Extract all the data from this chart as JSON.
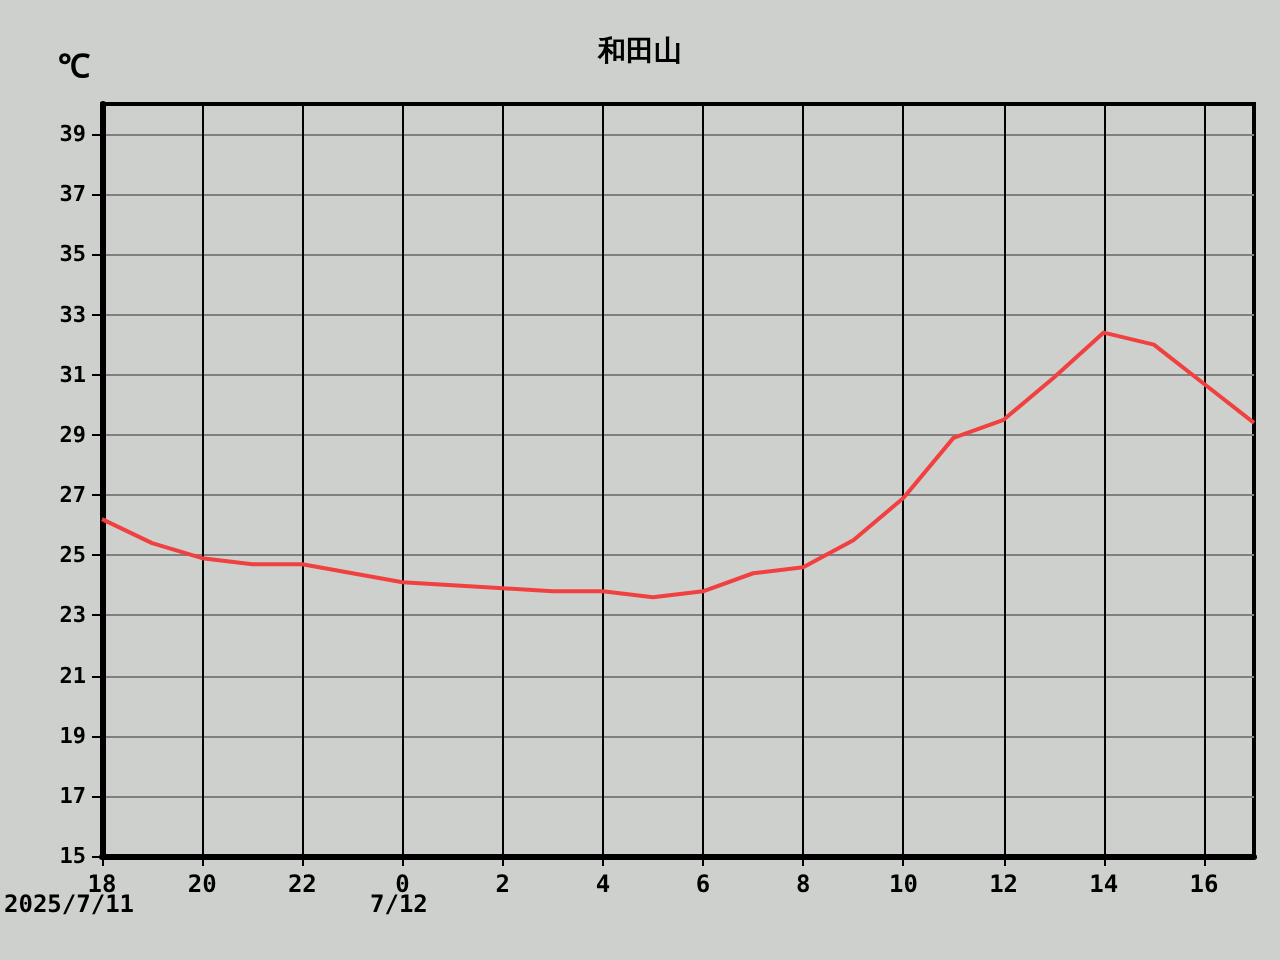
{
  "chart_data": {
    "type": "line",
    "title": "和田山",
    "ylabel": "℃",
    "x": [
      "2025-07-11T18:00",
      "2025-07-11T19:00",
      "2025-07-11T20:00",
      "2025-07-11T21:00",
      "2025-07-11T22:00",
      "2025-07-11T23:00",
      "2025-07-12T00:00",
      "2025-07-12T01:00",
      "2025-07-12T02:00",
      "2025-07-12T03:00",
      "2025-07-12T04:00",
      "2025-07-12T05:00",
      "2025-07-12T06:00",
      "2025-07-12T07:00",
      "2025-07-12T08:00",
      "2025-07-12T09:00",
      "2025-07-12T10:00",
      "2025-07-12T11:00",
      "2025-07-12T12:00",
      "2025-07-12T13:00",
      "2025-07-12T14:00",
      "2025-07-12T15:00",
      "2025-07-12T16:00",
      "2025-07-12T17:00"
    ],
    "series": [
      {
        "color": "#f04040",
        "values": [
          26.2,
          25.4,
          24.9,
          24.7,
          24.7,
          24.4,
          24.1,
          24.0,
          23.9,
          23.8,
          23.8,
          23.6,
          23.8,
          24.4,
          24.6,
          25.5,
          26.9,
          28.9,
          29.5,
          30.9,
          32.4,
          32.0,
          30.7,
          29.4
        ]
      }
    ],
    "xlim": [
      "2025-07-11T18:00",
      "2025-07-12T17:00"
    ],
    "xticks": [
      {
        "value": "2025-07-11T18:00",
        "label": "18"
      },
      {
        "value": "2025-07-11T20:00",
        "label": "20"
      },
      {
        "value": "2025-07-11T22:00",
        "label": "22"
      },
      {
        "value": "2025-07-12T00:00",
        "label": "0"
      },
      {
        "value": "2025-07-12T02:00",
        "label": "2"
      },
      {
        "value": "2025-07-12T04:00",
        "label": "4"
      },
      {
        "value": "2025-07-12T06:00",
        "label": "6"
      },
      {
        "value": "2025-07-12T08:00",
        "label": "8"
      },
      {
        "value": "2025-07-12T10:00",
        "label": "10"
      },
      {
        "value": "2025-07-12T12:00",
        "label": "12"
      },
      {
        "value": "2025-07-12T14:00",
        "label": "14"
      },
      {
        "value": "2025-07-12T16:00",
        "label": "16"
      }
    ],
    "ylim": [
      15,
      40
    ],
    "yticks": [
      15,
      17,
      19,
      21,
      23,
      25,
      27,
      29,
      31,
      33,
      35,
      37,
      39
    ],
    "annotations": [
      "2025/7/11",
      "7/12"
    ],
    "grid": true,
    "marker": "none",
    "line_style": "solid"
  }
}
